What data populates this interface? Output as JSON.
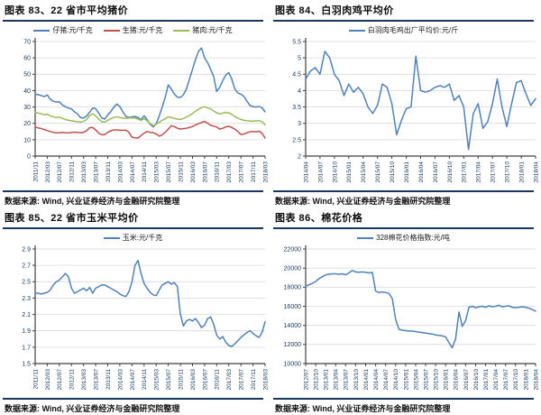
{
  "page": {
    "background": "#ffffff"
  },
  "colors": {
    "rule_navy": "#17375E",
    "tick_label": "#17375E",
    "grid": "#D9D9D9",
    "axis": "#404040",
    "series_blue": "#4F81BD",
    "series_red": "#C0504D",
    "series_green": "#9BBB59"
  },
  "chart_data": [
    {
      "type": "line",
      "title": "图表 83、22 省市平均猪价",
      "source": "数据来源: Wind, 兴业证券经济与金融研究院整理",
      "legend_position": "top-center",
      "grid": "horizontal",
      "ylim": [
        0,
        70
      ],
      "yticks": [
        0,
        10,
        20,
        30,
        40,
        50,
        60,
        70
      ],
      "tick_every": 4,
      "x_labels": [
        "2011/11",
        "2012/03",
        "2012/07",
        "2012/11",
        "2013/03",
        "2013/07",
        "2013/11",
        "2014/03",
        "2014/07",
        "2014/11",
        "2015/03",
        "2015/07",
        "2015/11",
        "2016/03",
        "2016/07",
        "2016/11",
        "2017/03",
        "2017/07",
        "2017/11",
        "2018/03"
      ],
      "series": [
        {
          "name": "仔猪:元/千克",
          "color": "#4F81BD",
          "values": [
            38.0,
            37.5,
            37.0,
            36.3,
            37.3,
            34.8,
            33.5,
            33.0,
            33.2,
            31.2,
            30.2,
            29.3,
            28.8,
            27.0,
            25.8,
            23.5,
            23.2,
            24.5,
            26.8,
            29.3,
            29.0,
            26.3,
            23.3,
            22.6,
            25.2,
            27.2,
            29.8,
            31.8,
            30.3,
            27.0,
            24.2,
            23.6,
            24.0,
            24.2,
            23.6,
            22.2,
            24.6,
            22.3,
            19.5,
            17.8,
            19.8,
            24.5,
            30.0,
            36.0,
            43.5,
            41.0,
            38.0,
            36.0,
            35.8,
            37.5,
            41.0,
            47.0,
            53.0,
            59.0,
            64.0,
            66.0,
            60.0,
            57.0,
            53.0,
            48.5,
            39.5,
            42.0,
            46.0,
            49.5,
            51.0,
            47.0,
            41.0,
            38.5,
            37.8,
            36.5,
            33.5,
            31.0,
            30.2,
            30.0,
            30.3,
            29.5,
            27.0
          ]
        },
        {
          "name": "生猪:元/千克",
          "color": "#C0504D",
          "values": [
            17.8,
            17.2,
            16.8,
            16.2,
            15.6,
            15.0,
            14.5,
            14.2,
            14.3,
            14.5,
            14.3,
            14.2,
            14.4,
            14.6,
            14.5,
            14.3,
            14.5,
            15.5,
            17.3,
            17.5,
            16.0,
            14.0,
            13.0,
            13.2,
            14.5,
            15.5,
            16.0,
            16.0,
            15.8,
            15.7,
            15.8,
            14.5,
            11.5,
            11.2,
            11.0,
            12.5,
            14.0,
            15.0,
            14.5,
            14.3,
            13.5,
            12.2,
            13.0,
            14.5,
            16.5,
            18.5,
            18.0,
            17.0,
            16.5,
            16.8,
            17.0,
            17.5,
            18.0,
            19.0,
            19.8,
            20.5,
            21.2,
            20.0,
            18.8,
            18.3,
            17.8,
            16.5,
            17.0,
            17.8,
            18.2,
            17.5,
            16.5,
            15.0,
            13.2,
            13.5,
            14.2,
            14.8,
            15.0,
            14.8,
            15.2,
            14.0,
            11.0
          ]
        },
        {
          "name": "猪肉:元/千克",
          "color": "#9BBB59",
          "values": [
            26.8,
            26.3,
            25.8,
            25.2,
            25.6,
            24.6,
            24.0,
            23.6,
            23.8,
            23.0,
            22.4,
            21.8,
            21.6,
            21.3,
            21.0,
            20.8,
            21.2,
            22.3,
            24.8,
            25.8,
            24.6,
            22.6,
            21.0,
            20.8,
            21.8,
            22.8,
            23.6,
            24.0,
            23.6,
            23.2,
            23.0,
            23.2,
            23.4,
            23.2,
            22.6,
            21.8,
            22.8,
            21.6,
            20.0,
            18.6,
            19.4,
            20.6,
            21.8,
            22.8,
            24.0,
            23.6,
            23.0,
            22.6,
            22.4,
            23.0,
            23.8,
            24.8,
            26.0,
            27.4,
            28.6,
            29.6,
            30.2,
            29.4,
            28.8,
            27.6,
            26.4,
            25.8,
            26.2,
            26.6,
            26.4,
            25.4,
            24.2,
            23.2,
            22.4,
            21.8,
            21.6,
            21.4,
            21.4,
            21.5,
            21.6,
            21.0,
            19.0
          ]
        }
      ]
    },
    {
      "type": "line",
      "title": "图表 84、白羽肉鸡平均价",
      "source": "数据来源: Wind, 兴业证券经济与金融研究院整理",
      "legend_position": "top-center",
      "grid": "horizontal",
      "ylim": [
        2,
        5.5
      ],
      "yticks": [
        2,
        2.5,
        3,
        3.5,
        4,
        4.5,
        5,
        5.5
      ],
      "tick_every": 3,
      "x_labels": [
        "2014/04",
        "2014/07",
        "2014/10",
        "2015/01",
        "2015/04",
        "2015/07",
        "2015/10",
        "2016/01",
        "2016/04",
        "2016/07",
        "2016/10",
        "2017/01",
        "2017/04",
        "2017/07",
        "2017/10",
        "2018/01",
        "2018/04"
      ],
      "series": [
        {
          "name": "白羽肉毛鸡出厂平均价:元/斤",
          "color": "#4F81BD",
          "values": [
            4.35,
            4.6,
            4.7,
            4.5,
            5.2,
            5.0,
            4.5,
            4.3,
            3.85,
            4.2,
            3.95,
            4.1,
            3.9,
            3.5,
            3.3,
            3.55,
            4.2,
            4.1,
            3.6,
            2.65,
            3.1,
            3.45,
            3.5,
            5.05,
            4.0,
            3.95,
            4.0,
            4.1,
            4.15,
            4.1,
            4.2,
            3.7,
            3.85,
            3.5,
            2.2,
            3.3,
            3.6,
            2.85,
            3.05,
            3.6,
            4.35,
            3.5,
            2.9,
            3.6,
            4.25,
            4.3,
            3.9,
            3.55,
            3.75
          ]
        }
      ]
    },
    {
      "type": "line",
      "title": "图表 85、22 省市玉米平均价",
      "source": "数据来源: Wind, 兴业证券经济与金融研究院整理",
      "legend_position": "top-center",
      "grid": "horizontal",
      "ylim": [
        1.5,
        2.9
      ],
      "yticks": [
        1.5,
        1.7,
        1.9,
        2.1,
        2.3,
        2.5,
        2.7,
        2.9
      ],
      "tick_every": 4,
      "x_labels": [
        "2011/11",
        "2012/03",
        "2012/07",
        "2012/11",
        "2013/03",
        "2013/07",
        "2013/11",
        "2014/03",
        "2014/07",
        "2014/11",
        "2015/03",
        "2015/07",
        "2015/11",
        "2016/03",
        "2016/07",
        "2016/11",
        "2017/03",
        "2017/07",
        "2017/11",
        "2018/03"
      ],
      "series": [
        {
          "name": "玉米:元/千克",
          "color": "#4F81BD",
          "values": [
            2.36,
            2.36,
            2.35,
            2.36,
            2.37,
            2.4,
            2.46,
            2.5,
            2.52,
            2.56,
            2.6,
            2.56,
            2.42,
            2.36,
            2.38,
            2.4,
            2.42,
            2.39,
            2.43,
            2.36,
            2.42,
            2.44,
            2.46,
            2.46,
            2.44,
            2.42,
            2.4,
            2.38,
            2.35,
            2.33,
            2.32,
            2.38,
            2.5,
            2.7,
            2.76,
            2.6,
            2.48,
            2.42,
            2.37,
            2.34,
            2.33,
            2.4,
            2.46,
            2.48,
            2.5,
            2.47,
            2.49,
            2.44,
            2.1,
            1.96,
            2.02,
            2.04,
            2.02,
            2.05,
            2.0,
            1.94,
            1.97,
            2.05,
            2.07,
            1.98,
            1.85,
            1.8,
            1.83,
            1.76,
            1.72,
            1.71,
            1.74,
            1.78,
            1.82,
            1.85,
            1.88,
            1.9,
            1.87,
            1.84,
            1.82,
            1.88,
            2.01
          ]
        }
      ]
    },
    {
      "type": "line",
      "title": "图表 86、棉花价格",
      "source": "数据来源: Wind, 兴业证券经济与金融研究院整理",
      "legend_position": "top-center",
      "grid": "horizontal",
      "ylim": [
        10000,
        22000
      ],
      "yticks": [
        10000,
        12000,
        14000,
        16000,
        18000,
        20000,
        22000
      ],
      "tick_every": 3,
      "x_labels": [
        "2012/07",
        "2012/10",
        "2013/01",
        "2013/04",
        "2013/07",
        "2013/10",
        "2014/01",
        "2014/04",
        "2014/07",
        "2014/10",
        "2015/01",
        "2015/04",
        "2015/07",
        "2015/10",
        "2016/01",
        "2016/04",
        "2016/07",
        "2016/10",
        "2017/01",
        "2017/04",
        "2017/07",
        "2017/10",
        "2018/01",
        "2018/04"
      ],
      "series": [
        {
          "name": "328棉花价格指数:元/吨",
          "color": "#4F81BD",
          "values": [
            18100,
            18250,
            18400,
            18600,
            18900,
            19100,
            19300,
            19350,
            19400,
            19400,
            19350,
            19400,
            19300,
            19500,
            19750,
            19600,
            19550,
            19600,
            19550,
            19500,
            19550,
            17600,
            17450,
            17500,
            17450,
            17350,
            16800,
            14600,
            13600,
            13500,
            13450,
            13400,
            13400,
            13350,
            13300,
            13250,
            13200,
            13150,
            13100,
            13000,
            12950,
            12900,
            12800,
            12200,
            11650,
            12600,
            15400,
            13900,
            14500,
            15900,
            16000,
            15850,
            15950,
            16000,
            15900,
            16050,
            15950,
            16000,
            16100,
            15950,
            16000,
            16050,
            15900,
            15850,
            15900,
            15950,
            15900,
            15800,
            15650,
            15500
          ]
        }
      ]
    }
  ]
}
